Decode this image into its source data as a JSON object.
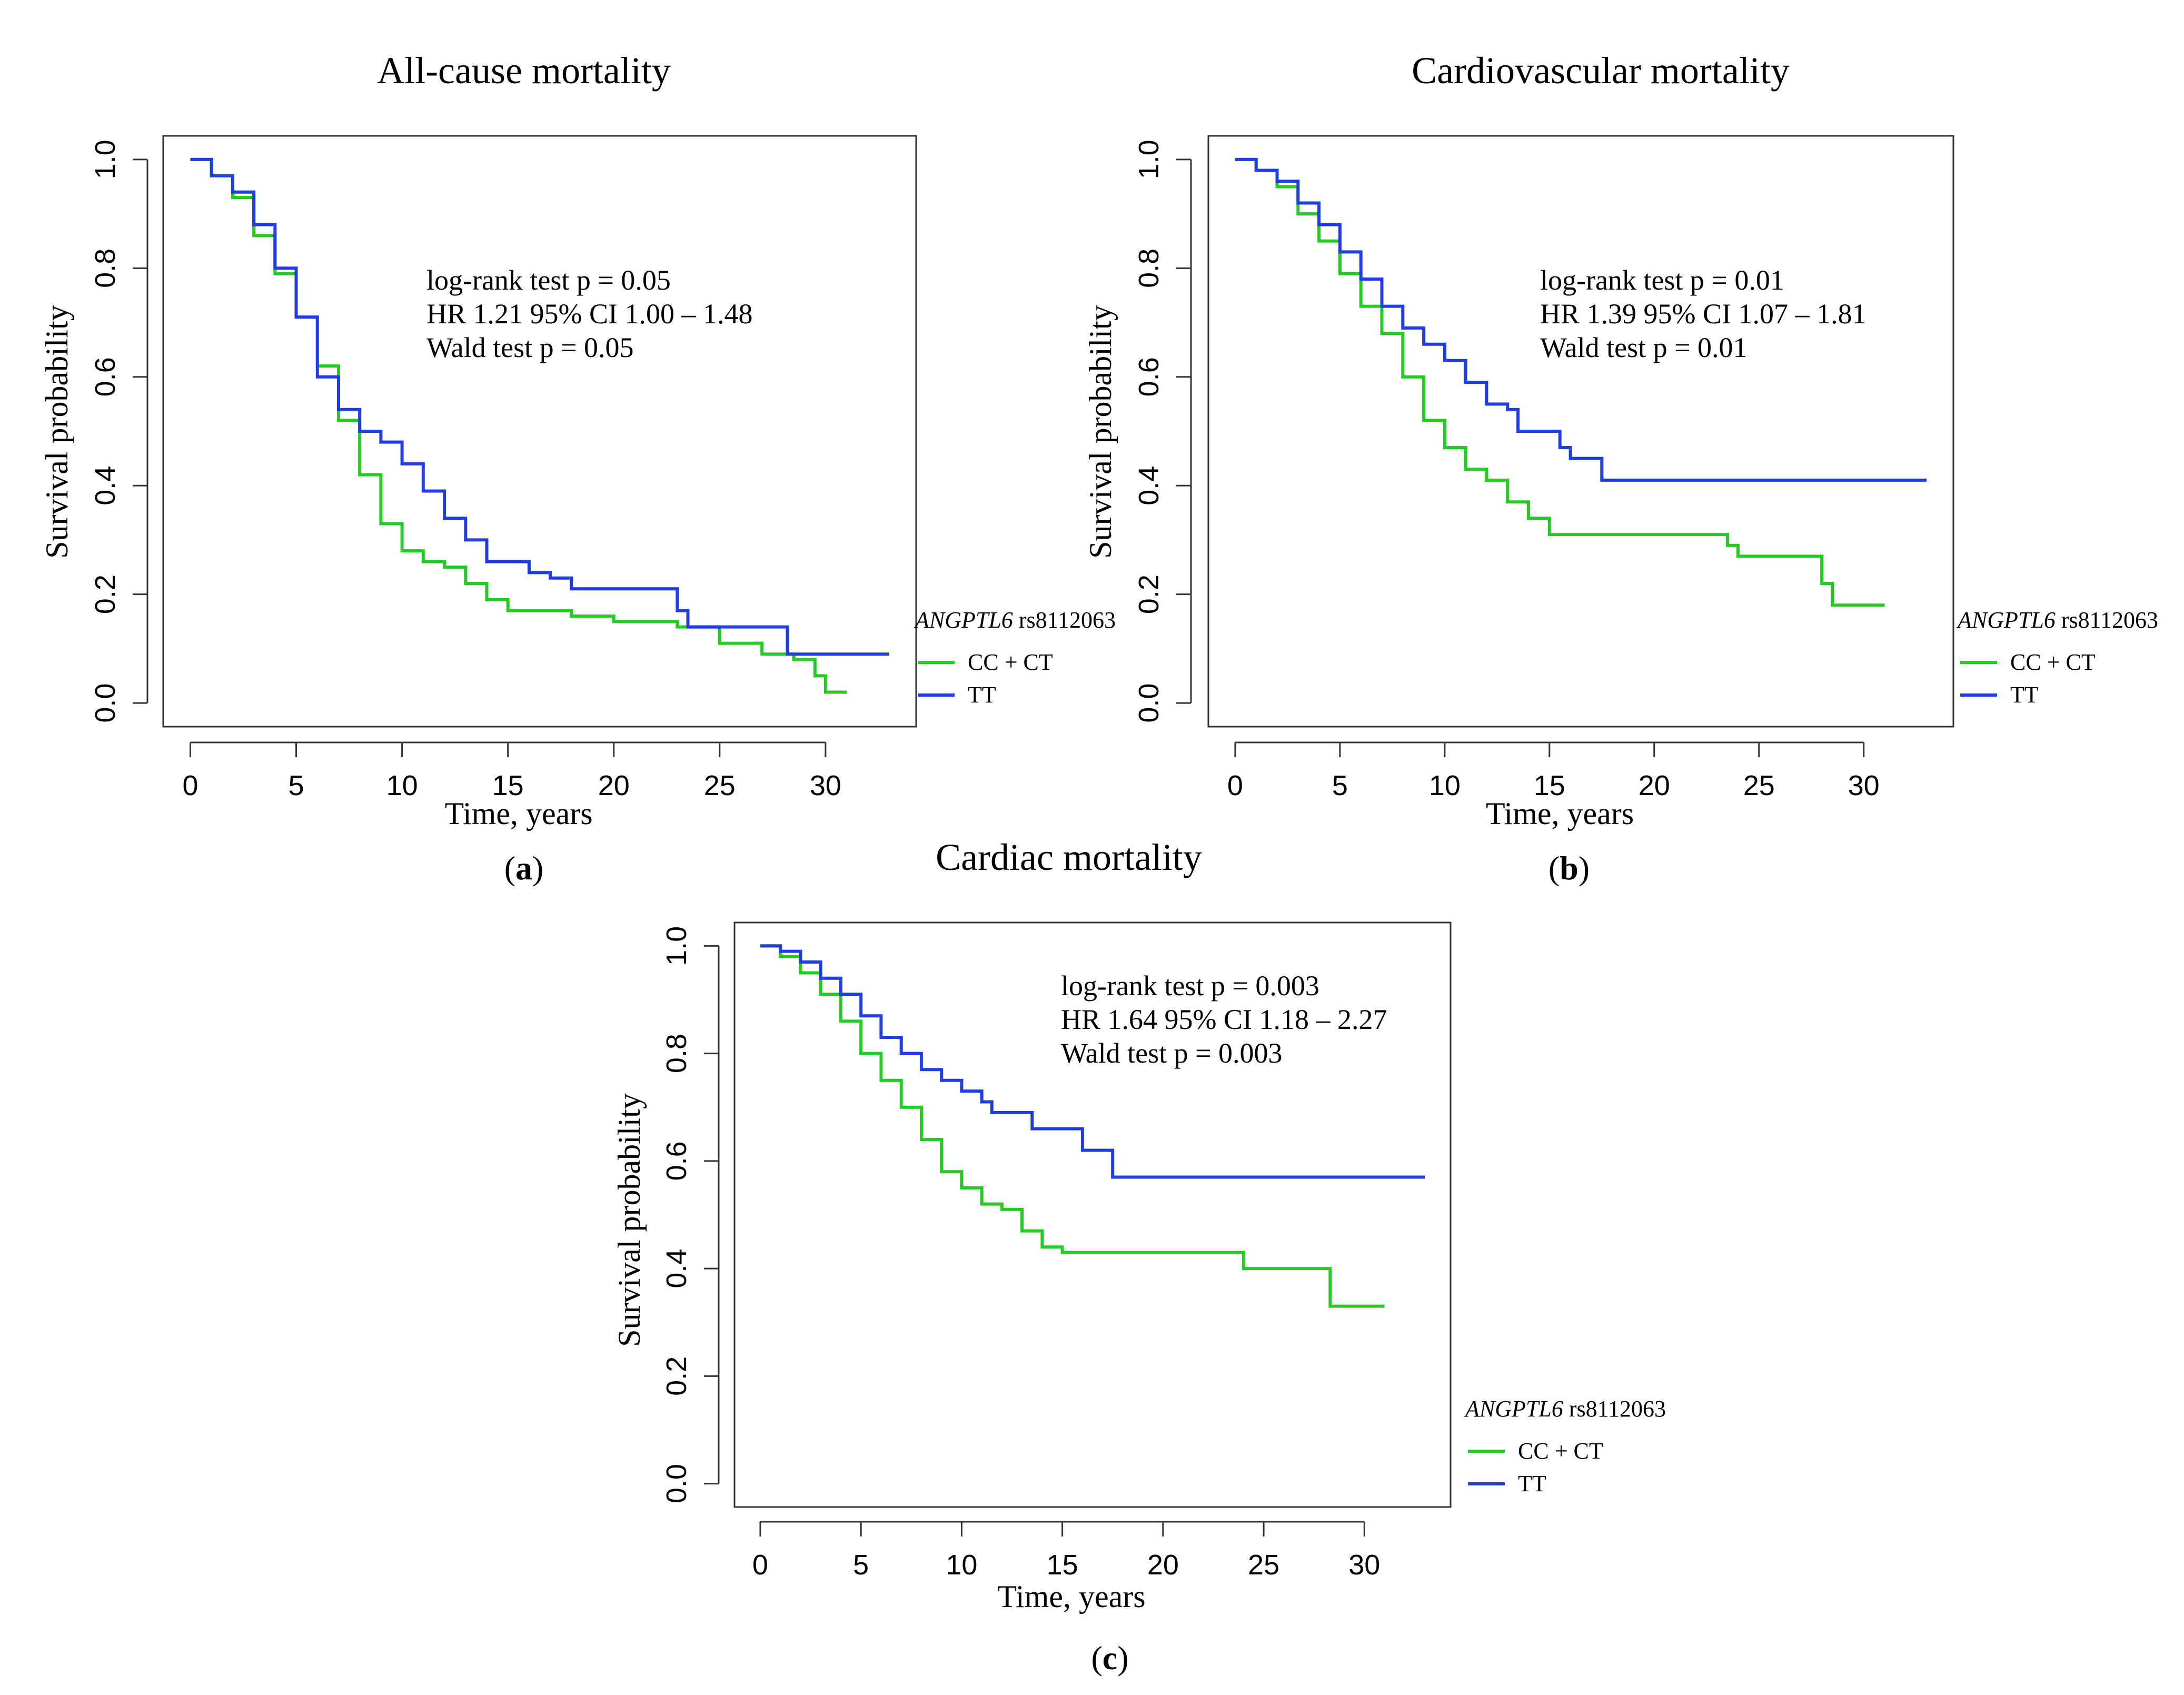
{
  "chart_data": [
    {
      "type": "line",
      "panel_label": "(a)",
      "panel_letter": "a",
      "title": "All-cause mortality",
      "xlabel": "Time, years",
      "ylabel": "Survival probability",
      "xlim": [
        0,
        33
      ],
      "ylim": [
        0,
        1
      ],
      "x_ticks": [
        "0",
        "5",
        "10",
        "15",
        "20",
        "25",
        "30"
      ],
      "y_ticks": [
        "0.0",
        "0.2",
        "0.4",
        "0.6",
        "0.8",
        "1.0"
      ],
      "annotation": [
        "log-rank test p = 0.05",
        "HR 1.21 95% CI 1.00 – 1.48",
        "Wald test p = 0.05"
      ],
      "legend": {
        "title_gene": "ANGPTL6",
        "title_snp": " rs8112063",
        "entries": [
          "CC + CT",
          "TT"
        ]
      },
      "series": [
        {
          "name": "CC + CT",
          "color": "#22cc22",
          "points": [
            [
              0,
              1.0
            ],
            [
              1,
              0.97
            ],
            [
              2,
              0.93
            ],
            [
              3,
              0.86
            ],
            [
              4,
              0.79
            ],
            [
              5,
              0.71
            ],
            [
              6,
              0.62
            ],
            [
              7,
              0.52
            ],
            [
              8,
              0.42
            ],
            [
              9,
              0.33
            ],
            [
              10,
              0.28
            ],
            [
              11,
              0.26
            ],
            [
              12,
              0.25
            ],
            [
              13,
              0.22
            ],
            [
              14,
              0.19
            ],
            [
              15,
              0.17
            ],
            [
              18,
              0.16
            ],
            [
              20,
              0.15
            ],
            [
              23,
              0.14
            ],
            [
              25,
              0.11
            ],
            [
              27,
              0.09
            ],
            [
              28.5,
              0.08
            ],
            [
              29.5,
              0.05
            ],
            [
              30,
              0.02
            ],
            [
              31,
              0.02
            ]
          ]
        },
        {
          "name": "TT",
          "color": "#1f3de0",
          "points": [
            [
              0,
              1.0
            ],
            [
              1,
              0.97
            ],
            [
              2,
              0.94
            ],
            [
              3,
              0.88
            ],
            [
              4,
              0.8
            ],
            [
              5,
              0.71
            ],
            [
              6,
              0.6
            ],
            [
              7,
              0.54
            ],
            [
              8,
              0.5
            ],
            [
              9,
              0.48
            ],
            [
              10,
              0.44
            ],
            [
              11,
              0.39
            ],
            [
              12,
              0.34
            ],
            [
              13,
              0.3
            ],
            [
              14,
              0.26
            ],
            [
              16,
              0.24
            ],
            [
              17,
              0.23
            ],
            [
              18,
              0.21
            ],
            [
              23,
              0.17
            ],
            [
              23.5,
              0.14
            ],
            [
              28.2,
              0.09
            ],
            [
              33,
              0.09
            ]
          ]
        }
      ]
    },
    {
      "type": "line",
      "panel_label": "(b)",
      "panel_letter": "b",
      "title": "Cardiovascular mortality",
      "xlabel": "Time, years",
      "ylabel": "Survival probability",
      "xlim": [
        0,
        33
      ],
      "ylim": [
        0,
        1
      ],
      "x_ticks": [
        "0",
        "5",
        "10",
        "15",
        "20",
        "25",
        "30"
      ],
      "y_ticks": [
        "0.0",
        "0.2",
        "0.4",
        "0.6",
        "0.8",
        "1.0"
      ],
      "annotation": [
        "log-rank test p = 0.01",
        "HR 1.39 95% CI 1.07 – 1.81",
        "Wald test p = 0.01"
      ],
      "legend": {
        "title_gene": "ANGPTL6",
        "title_snp": " rs8112063",
        "entries": [
          "CC + CT",
          "TT"
        ]
      },
      "series": [
        {
          "name": "CC + CT",
          "color": "#22cc22",
          "points": [
            [
              0,
              1.0
            ],
            [
              1,
              0.98
            ],
            [
              2,
              0.95
            ],
            [
              3,
              0.9
            ],
            [
              4,
              0.85
            ],
            [
              5,
              0.79
            ],
            [
              6,
              0.73
            ],
            [
              7,
              0.68
            ],
            [
              8,
              0.6
            ],
            [
              9,
              0.52
            ],
            [
              10,
              0.47
            ],
            [
              11,
              0.43
            ],
            [
              12,
              0.41
            ],
            [
              13,
              0.37
            ],
            [
              14,
              0.34
            ],
            [
              15,
              0.31
            ],
            [
              23.5,
              0.29
            ],
            [
              24,
              0.27
            ],
            [
              28,
              0.22
            ],
            [
              28.5,
              0.18
            ],
            [
              31,
              0.18
            ]
          ]
        },
        {
          "name": "TT",
          "color": "#1f3de0",
          "points": [
            [
              0,
              1.0
            ],
            [
              1,
              0.98
            ],
            [
              2,
              0.96
            ],
            [
              3,
              0.92
            ],
            [
              4,
              0.88
            ],
            [
              5,
              0.83
            ],
            [
              6,
              0.78
            ],
            [
              7,
              0.73
            ],
            [
              8,
              0.69
            ],
            [
              9,
              0.66
            ],
            [
              10,
              0.63
            ],
            [
              11,
              0.59
            ],
            [
              12,
              0.55
            ],
            [
              13,
              0.54
            ],
            [
              13.5,
              0.5
            ],
            [
              15,
              0.5
            ],
            [
              15.5,
              0.47
            ],
            [
              16,
              0.45
            ],
            [
              17.5,
              0.41
            ],
            [
              33,
              0.41
            ]
          ]
        }
      ]
    },
    {
      "type": "line",
      "panel_label": "(c)",
      "panel_letter": "c",
      "title": "Cardiac mortality",
      "xlabel": "Time, years",
      "ylabel": "Survival probability",
      "xlim": [
        0,
        33
      ],
      "ylim": [
        0,
        1
      ],
      "x_ticks": [
        "0",
        "5",
        "10",
        "15",
        "20",
        "25",
        "30"
      ],
      "y_ticks": [
        "0.0",
        "0.2",
        "0.4",
        "0.6",
        "0.8",
        "1.0"
      ],
      "annotation": [
        "log-rank test p = 0.003",
        "HR 1.64 95% CI 1.18 – 2.27",
        "Wald test p = 0.003"
      ],
      "legend": {
        "title_gene": "ANGPTL6",
        "title_snp": " rs8112063",
        "entries": [
          "CC + CT",
          "TT"
        ]
      },
      "series": [
        {
          "name": "CC + CT",
          "color": "#22cc22",
          "points": [
            [
              0,
              1.0
            ],
            [
              1,
              0.98
            ],
            [
              2,
              0.95
            ],
            [
              3,
              0.91
            ],
            [
              4,
              0.86
            ],
            [
              5,
              0.8
            ],
            [
              6,
              0.75
            ],
            [
              7,
              0.7
            ],
            [
              8,
              0.64
            ],
            [
              9,
              0.58
            ],
            [
              10,
              0.55
            ],
            [
              11,
              0.52
            ],
            [
              12,
              0.51
            ],
            [
              13,
              0.47
            ],
            [
              14,
              0.44
            ],
            [
              15,
              0.43
            ],
            [
              23.5,
              0.43
            ],
            [
              24,
              0.4
            ],
            [
              28,
              0.4
            ],
            [
              28.3,
              0.33
            ],
            [
              31,
              0.33
            ]
          ]
        },
        {
          "name": "TT",
          "color": "#1f3de0",
          "points": [
            [
              0,
              1.0
            ],
            [
              1,
              0.99
            ],
            [
              2,
              0.97
            ],
            [
              3,
              0.94
            ],
            [
              4,
              0.91
            ],
            [
              5,
              0.87
            ],
            [
              6,
              0.83
            ],
            [
              7,
              0.8
            ],
            [
              8,
              0.77
            ],
            [
              9,
              0.75
            ],
            [
              10,
              0.73
            ],
            [
              11,
              0.71
            ],
            [
              11.5,
              0.69
            ],
            [
              13,
              0.69
            ],
            [
              13.5,
              0.66
            ],
            [
              15,
              0.66
            ],
            [
              16,
              0.62
            ],
            [
              17.5,
              0.57
            ],
            [
              33,
              0.57
            ]
          ]
        }
      ]
    }
  ]
}
